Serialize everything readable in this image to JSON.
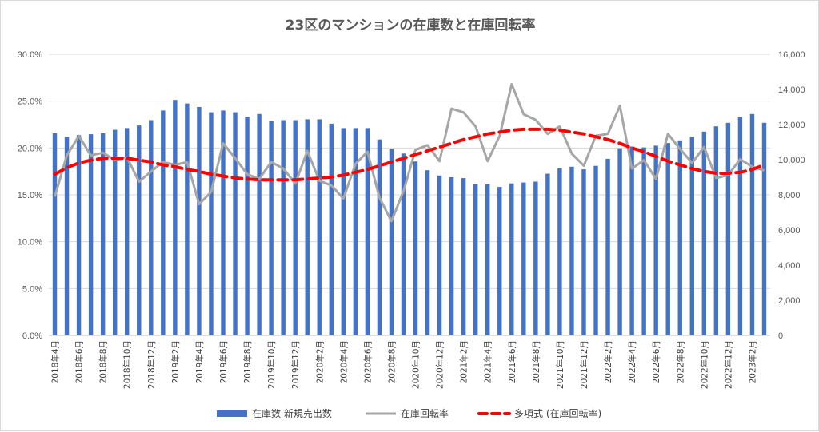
{
  "chart_data": {
    "type": "bar+line",
    "title": "23区のマンションの在庫数と在庫回転率",
    "categories": [
      "2018年4月",
      "2018年5月",
      "2018年6月",
      "2018年7月",
      "2018年8月",
      "2018年9月",
      "2018年10月",
      "2018年11月",
      "2018年12月",
      "2019年1月",
      "2019年2月",
      "2019年3月",
      "2019年4月",
      "2019年5月",
      "2019年6月",
      "2019年7月",
      "2019年8月",
      "2019年9月",
      "2019年10月",
      "2019年11月",
      "2019年12月",
      "2020年1月",
      "2020年2月",
      "2020年3月",
      "2020年4月",
      "2020年5月",
      "2020年6月",
      "2020年7月",
      "2020年8月",
      "2020年9月",
      "2020年10月",
      "2020年11月",
      "2020年12月",
      "2021年1月",
      "2021年2月",
      "2021年3月",
      "2021年4月",
      "2021年5月",
      "2021年6月",
      "2021年7月",
      "2021年8月",
      "2021年9月",
      "2021年10月",
      "2021年11月",
      "2021年12月",
      "2022年1月",
      "2022年2月",
      "2022年3月",
      "2022年4月",
      "2022年5月",
      "2022年6月",
      "2022年7月",
      "2022年8月",
      "2022年9月",
      "2022年10月",
      "2022年11月",
      "2022年12月",
      "2023年1月",
      "2023年2月",
      "2023年3月"
    ],
    "x_tick_labels_shown": [
      "2018年4月",
      "2018年6月",
      "2018年8月",
      "2018年10月",
      "2018年12月",
      "2019年2月",
      "2019年4月",
      "2019年6月",
      "2019年8月",
      "2019年10月",
      "2019年12月",
      "2020年2月",
      "2020年4月",
      "2020年6月",
      "2020年8月",
      "2020年10月",
      "2020年12月",
      "2021年2月",
      "2021年4月",
      "2021年6月",
      "2021年8月",
      "2021年10月",
      "2021年12月",
      "2022年2月",
      "2022年4月",
      "2022年6月",
      "2022年8月",
      "2022年10月",
      "2022年12月",
      "2023年2月"
    ],
    "series": [
      {
        "name": "在庫数 新規売出数",
        "kind": "bar",
        "axis": "right",
        "color": "#4472c4",
        "values": [
          11500,
          11300,
          11400,
          11450,
          11500,
          11700,
          11800,
          11950,
          12250,
          12800,
          13400,
          13200,
          13000,
          12700,
          12800,
          12700,
          12450,
          12600,
          12200,
          12250,
          12250,
          12300,
          12300,
          12050,
          11800,
          11800,
          11800,
          11150,
          10600,
          10350,
          9900,
          9400,
          9100,
          9000,
          8950,
          8600,
          8600,
          8450,
          8650,
          8700,
          8750,
          9200,
          9500,
          9600,
          9450,
          9650,
          10050,
          10650,
          10750,
          10700,
          10800,
          10950,
          11100,
          11300,
          11600,
          11900,
          12100,
          12450,
          12600,
          12100
        ]
      },
      {
        "name": "在庫回転率",
        "kind": "line",
        "axis": "left",
        "color": "#a6a6a6",
        "values": [
          0.148,
          0.192,
          0.213,
          0.192,
          0.195,
          0.187,
          0.19,
          0.164,
          0.175,
          0.185,
          0.182,
          0.185,
          0.14,
          0.153,
          0.205,
          0.189,
          0.172,
          0.167,
          0.185,
          0.178,
          0.162,
          0.197,
          0.165,
          0.16,
          0.146,
          0.183,
          0.196,
          0.147,
          0.122,
          0.154,
          0.198,
          0.203,
          0.186,
          0.242,
          0.238,
          0.223,
          0.186,
          0.213,
          0.268,
          0.236,
          0.23,
          0.215,
          0.223,
          0.194,
          0.181,
          0.213,
          0.215,
          0.245,
          0.178,
          0.187,
          0.167,
          0.215,
          0.199,
          0.184,
          0.201,
          0.168,
          0.171,
          0.188,
          0.18,
          0.176
        ]
      },
      {
        "name": "多項式 (在庫回転率)",
        "kind": "trendline",
        "axis": "left",
        "color": "#ff0000",
        "values": [
          0.172,
          0.179,
          0.184,
          0.187,
          0.189,
          0.189,
          0.189,
          0.187,
          0.185,
          0.182,
          0.18,
          0.177,
          0.175,
          0.172,
          0.17,
          0.168,
          0.167,
          0.166,
          0.166,
          0.166,
          0.166,
          0.167,
          0.168,
          0.169,
          0.171,
          0.174,
          0.177,
          0.181,
          0.185,
          0.189,
          0.193,
          0.197,
          0.201,
          0.205,
          0.209,
          0.212,
          0.215,
          0.217,
          0.219,
          0.22,
          0.22,
          0.22,
          0.219,
          0.217,
          0.215,
          0.212,
          0.209,
          0.205,
          0.2,
          0.196,
          0.191,
          0.186,
          0.182,
          0.178,
          0.175,
          0.173,
          0.173,
          0.174,
          0.177,
          0.182
        ]
      }
    ],
    "y_left": {
      "min": 0,
      "max": 0.3,
      "ticks": [
        "0.0%",
        "5.0%",
        "10.0%",
        "15.0%",
        "20.0%",
        "25.0%",
        "30.0%"
      ]
    },
    "y_right": {
      "min": 0,
      "max": 16000,
      "ticks": [
        "0",
        "2,000",
        "4,000",
        "6,000",
        "8,000",
        "10,000",
        "12,000",
        "14,000",
        "16,000"
      ]
    },
    "legend": {
      "position": "bottom",
      "items": [
        "在庫数 新規売出数",
        "在庫回転率",
        "多項式 (在庫回転率)"
      ]
    },
    "grid": true
  }
}
